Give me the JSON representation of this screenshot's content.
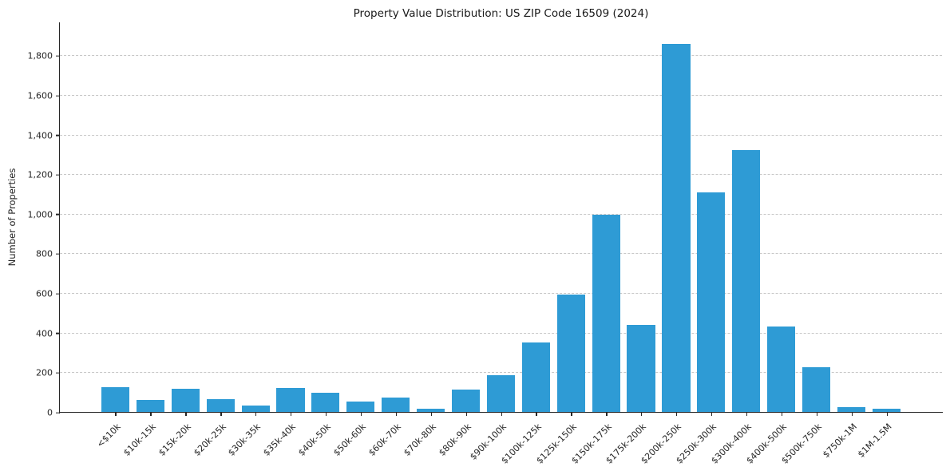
{
  "chart_data": {
    "type": "bar",
    "title": "Property Value Distribution: US ZIP Code 16509 (2024)",
    "xlabel": "",
    "ylabel": "Number of Properties",
    "categories": [
      "<$10k",
      "$10k-15k",
      "$15k-20k",
      "$20k-25k",
      "$30k-35k",
      "$35k-40k",
      "$40k-50k",
      "$50k-60k",
      "$60k-70k",
      "$70k-80k",
      "$80k-90k",
      "$90k-100k",
      "$100k-125k",
      "$125k-150k",
      "$150k-175k",
      "$175k-200k",
      "$200k-250k",
      "$250k-300k",
      "$300k-400k",
      "$400k-500k",
      "$500k-750k",
      "$750k-1M",
      "$1M-1.5M"
    ],
    "values": [
      130,
      65,
      120,
      70,
      35,
      125,
      100,
      55,
      75,
      20,
      115,
      190,
      355,
      595,
      1000,
      445,
      1860,
      1110,
      1325,
      435,
      230,
      30,
      20
    ],
    "yticks": [
      0,
      200,
      400,
      600,
      800,
      1000,
      1200,
      1400,
      1600,
      1800
    ],
    "ylim": [
      0,
      1970
    ],
    "grid": "horizontal-dashed",
    "gridline_color": "#c8c8c8",
    "bar_color": "#2e9bd5",
    "background_color": "#ffffff",
    "legend": null
  }
}
